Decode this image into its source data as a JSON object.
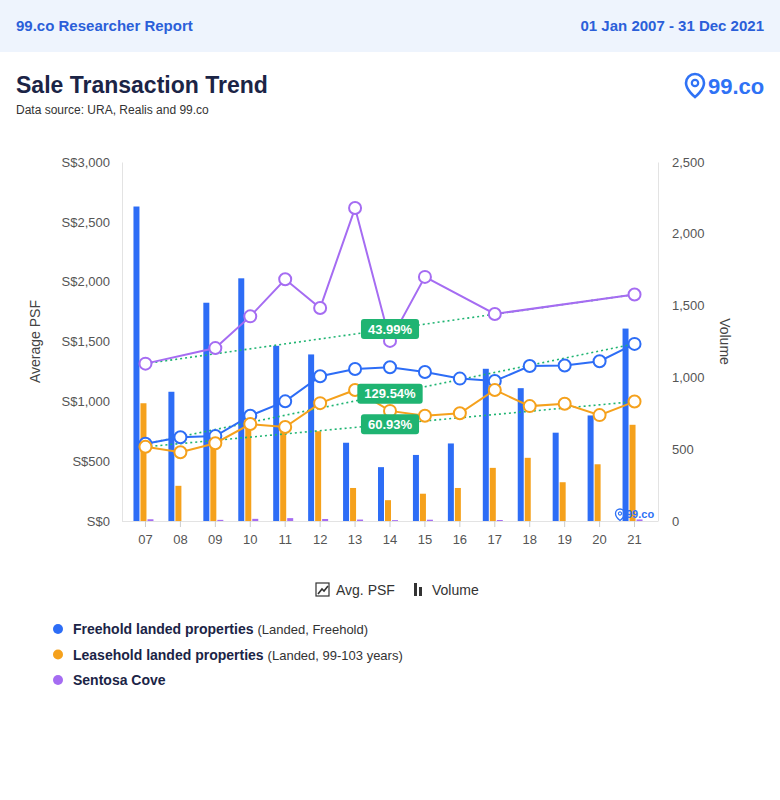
{
  "header": {
    "title": "99.co Researcher Report",
    "period": "01 Jan 2007 - 31 Dec 2021"
  },
  "logo": "99.co",
  "chart_data": {
    "type": "bar-line",
    "title": "Sale Transaction Trend",
    "subtitle": "Data source: URA, Realis and 99.co",
    "categories": [
      "07",
      "08",
      "09",
      "10",
      "11",
      "12",
      "13",
      "14",
      "15",
      "16",
      "17",
      "18",
      "19",
      "20",
      "21"
    ],
    "y_label": "Average PSF",
    "y2_label": "Volume",
    "ylim": [
      0,
      3000
    ],
    "yticks": [
      {
        "value": 0,
        "label": "S$0"
      },
      {
        "value": 500,
        "label": "S$500"
      },
      {
        "value": 1000,
        "label": "S$1,000"
      },
      {
        "value": 1500,
        "label": "S$1,500"
      },
      {
        "value": 2000,
        "label": "S$2,000"
      },
      {
        "value": 2500,
        "label": "S$2,500"
      },
      {
        "value": 3000,
        "label": "S$3,000"
      }
    ],
    "y2lim": [
      0,
      2500
    ],
    "y2ticks": [
      0,
      500,
      {
        "value": 1000,
        "label": "1,000"
      },
      {
        "value": 1500,
        "label": "1,500"
      },
      {
        "value": 2000,
        "label": "2,000"
      },
      {
        "value": 2500,
        "label": "2,500"
      }
    ],
    "grid": false,
    "type_legend": {
      "line": "Avg. PSF",
      "bar": "Volume"
    },
    "watermark": "99.co",
    "series": [
      {
        "name": "Freehold landed properties",
        "description": "(Landed, Freehold)",
        "color": "#2d6df6",
        "marker": "circle",
        "line_style": "solid",
        "values": [
          645,
          700,
          710,
          880,
          1000,
          1210,
          1270,
          1285,
          1245,
          1190,
          1170,
          1295,
          1300,
          1335,
          1480
        ],
        "volume": [
          2190,
          900,
          1520,
          1690,
          1220,
          1160,
          545,
          375,
          460,
          540,
          1060,
          925,
          615,
          735,
          1340
        ]
      },
      {
        "name": "Leasehold landed properties",
        "description": "(Landed, 99-103 years)",
        "color": "#f5a11c",
        "marker": "circle",
        "line_style": "solid",
        "values": [
          620,
          575,
          650,
          810,
          785,
          985,
          1095,
          920,
          880,
          900,
          1095,
          960,
          980,
          885,
          998
        ],
        "volume": [
          820,
          245,
          515,
          700,
          620,
          625,
          230,
          145,
          190,
          230,
          370,
          440,
          270,
          395,
          670
        ]
      },
      {
        "name": "Sentosa Cove",
        "color": "#a56cf2",
        "marker": "circle",
        "line_style": "solid",
        "x": [
          "07",
          "09",
          "10",
          "11",
          "12",
          "13",
          "14",
          "15",
          "17",
          "21"
        ],
        "values": [
          1315,
          1445,
          1710,
          2020,
          1780,
          2615,
          1505,
          2040,
          1730,
          1893
        ],
        "volume": [
          12,
          8,
          15,
          20,
          14,
          10,
          6,
          9,
          7,
          11
        ]
      }
    ],
    "annotations": [
      {
        "label": "43.99%",
        "series": "Sentosa Cove",
        "color": "#1fb472",
        "line_style": "dotted"
      },
      {
        "label": "129.54%",
        "series": "Freehold landed properties",
        "color": "#1fb472",
        "line_style": "dotted"
      },
      {
        "label": "60.93%",
        "series": "Leasehold landed properties",
        "color": "#1fb472",
        "line_style": "dotted"
      }
    ]
  }
}
